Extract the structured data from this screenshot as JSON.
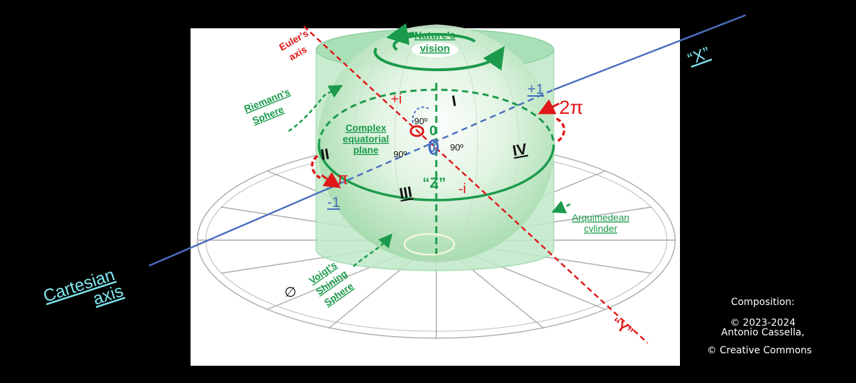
{
  "colors": {
    "background": "#000000",
    "panel": "#ffffff",
    "green": "#1a9a4a",
    "cylinder_fill": "#bfe9c8",
    "red": "#e01818",
    "blue": "#4a6fc0",
    "cyan": "#7fe6f0",
    "gray": "#9a9a9a"
  },
  "labels": {
    "euler_axis_l1": "Euler's",
    "euler_axis_l2": "axis",
    "nature_vision_l1": "Nature's",
    "nature_vision_l2": "vision",
    "riemann_l1": "Riemann's",
    "riemann_l2": "Sphere",
    "complex_l1": "Complex",
    "complex_l2": "equatorial",
    "complex_l3": "plane",
    "arquimedean_l1": "Arquimedean",
    "arquimedean_l2": "cylinder",
    "voigt_l1": "Voigt's",
    "voigt_l2": "Shining",
    "voigt_l3": "Sphere",
    "cartesian_l1": "Cartesian",
    "cartesian_l2": "axis",
    "x_axis": "“X”",
    "y_axis": "“Y”",
    "z_axis": "“Z”",
    "plus_i": "+i",
    "minus_i": "-i",
    "plus_one": "+1",
    "minus_one": "-1",
    "two_pi": "2π",
    "pi": "π",
    "zero_green": "0",
    "zero_blue": "0",
    "quadrant_1": "I",
    "quadrant_2": "II",
    "quadrant_3": "III",
    "quadrant_4": "IV",
    "angle_top": "90º",
    "angle_left": "90º",
    "angle_right": "90º",
    "empty_set": "∅"
  },
  "credits": {
    "composition": "Composition:",
    "copyright_years": "© 2023-2024",
    "author": "Antonio Cassella,",
    "license": "© Creative Commons"
  }
}
